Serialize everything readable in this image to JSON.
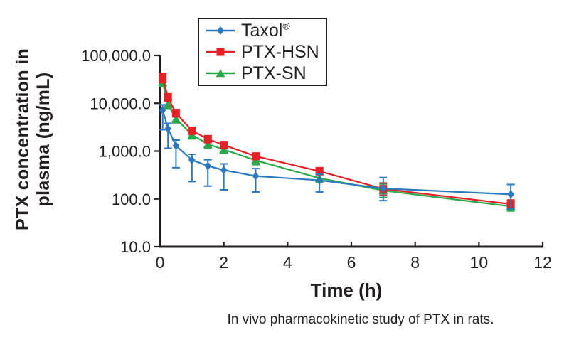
{
  "figure": {
    "caption": "In vivo pharmacokinetic study of PTX in rats."
  },
  "chart_data": {
    "type": "line",
    "title": "",
    "xlabel": "Time (h)",
    "ylabel": "PTX concentration in\nplasma (ng/mL)",
    "grid": false,
    "legend_position": "top-center",
    "x_axis": {
      "min": 0,
      "max": 12,
      "ticks": [
        0,
        2,
        4,
        6,
        8,
        10,
        12
      ],
      "tick_labels": [
        "0",
        "2",
        "4",
        "6",
        "8",
        "10",
        "12"
      ]
    },
    "y_axis": {
      "scale": "log",
      "min": 10,
      "max": 100000,
      "ticks": [
        100000,
        10000,
        1000,
        100,
        10
      ],
      "tick_labels": [
        "100,000.0",
        "10,000.0",
        "1,000.0",
        "100.0",
        "10.0"
      ]
    },
    "x": [
      0.083,
      0.25,
      0.5,
      1,
      1.5,
      2,
      3,
      5,
      7,
      11
    ],
    "series": [
      {
        "name": "Taxol",
        "name_sup": "®",
        "color": "#2A79BE",
        "marker": "diamond",
        "values": [
          7200,
          2950,
          1300,
          650,
          490,
          400,
          300,
          245,
          165,
          125
        ],
        "err_lo": [
          2800,
          1150,
          450,
          230,
          185,
          155,
          140,
          140,
          92,
          62
        ],
        "err_hi": [
          9300,
          3800,
          1700,
          860,
          660,
          540,
          430,
          330,
          280,
          200
        ]
      },
      {
        "name": "PTX-HSN",
        "name_sup": "",
        "color": "#E32126",
        "marker": "square",
        "values": [
          34000,
          13200,
          6200,
          2700,
          1780,
          1340,
          780,
          380,
          162,
          78
        ],
        "err_lo": [
          27000,
          11200,
          5200,
          2250,
          1500,
          1130,
          670,
          320,
          120,
          62
        ],
        "err_hi": [
          42000,
          15800,
          7400,
          3150,
          2100,
          1580,
          910,
          450,
          215,
          95
        ]
      },
      {
        "name": "PTX-SN",
        "name_sup": "",
        "color": "#2BA84A",
        "marker": "triangle",
        "values": [
          27500,
          9600,
          4750,
          2200,
          1400,
          1080,
          640,
          272,
          150,
          70
        ],
        "err_lo": [
          22500,
          7800,
          3900,
          1800,
          1150,
          890,
          520,
          225,
          108,
          56
        ],
        "err_hi": [
          33500,
          11800,
          5800,
          2650,
          1700,
          1300,
          780,
          330,
          205,
          86
        ]
      }
    ]
  },
  "style": {
    "axis_color": "#221E1F",
    "text_color": "#221E1F",
    "background": "#FFFFFF"
  }
}
